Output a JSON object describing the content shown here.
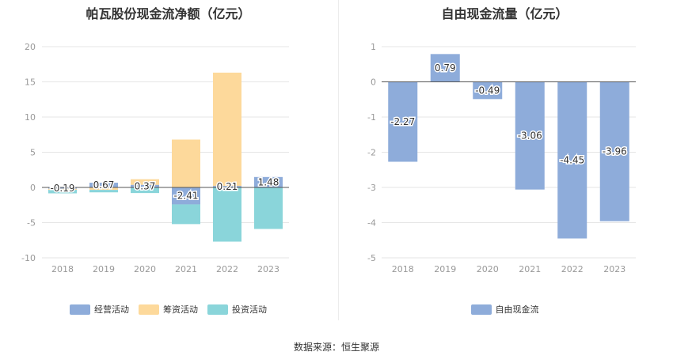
{
  "chart_data": [
    {
      "type": "bar",
      "title": "帕瓦股份现金流净额（亿元）",
      "categories": [
        "2018",
        "2019",
        "2020",
        "2021",
        "2022",
        "2023"
      ],
      "ylim": [
        -10,
        20
      ],
      "yticks": [
        20,
        15,
        10,
        5,
        0,
        -5,
        -10
      ],
      "grid": true,
      "stacked": true,
      "legend_position": "bottom",
      "series": [
        {
          "name": "经营活动",
          "color": "#8eacda",
          "values": [
            -0.19,
            0.67,
            0.37,
            -2.41,
            0.21,
            1.48
          ]
        },
        {
          "name": "筹资活动",
          "color": "#fdd99b",
          "values": [
            -0.15,
            -0.35,
            0.8,
            6.8,
            16.1,
            0
          ]
        },
        {
          "name": "投资活动",
          "color": "#8ad5da",
          "values": [
            -0.5,
            -0.35,
            -0.8,
            -2.8,
            -7.7,
            -5.9
          ]
        }
      ],
      "data_labels": [
        "-0.19",
        "0.67",
        "0.37",
        "-2.41",
        "0.21",
        "1.48"
      ]
    },
    {
      "type": "bar",
      "title": "自由现金流量（亿元）",
      "categories": [
        "2018",
        "2019",
        "2020",
        "2021",
        "2022",
        "2023"
      ],
      "ylim": [
        -5,
        1
      ],
      "yticks": [
        1,
        0,
        -1,
        -2,
        -3,
        -4,
        -5
      ],
      "grid": true,
      "legend_position": "bottom",
      "series": [
        {
          "name": "自由现金流",
          "color": "#8eacda",
          "values": [
            -2.27,
            0.79,
            -0.49,
            -3.06,
            -4.45,
            -3.96
          ]
        }
      ],
      "data_labels": [
        "-2.27",
        "0.79",
        "-0.49",
        "-3.06",
        "-4.45",
        "-3.96"
      ]
    }
  ],
  "footer": "数据来源：恒生聚源"
}
